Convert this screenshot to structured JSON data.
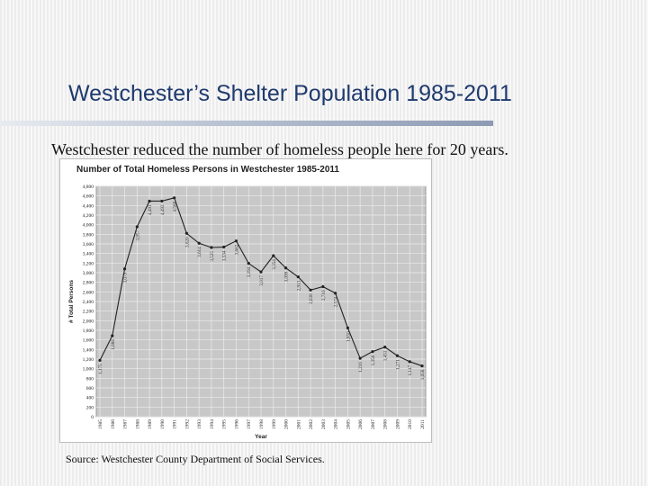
{
  "slide": {
    "title": "Westchester’s Shelter Population 1985-2011",
    "subtitle": "Westchester reduced the number of homeless people here for 20 years.",
    "source": "Source: Westchester County Department of Social Services."
  },
  "colors": {
    "title": "#1f3a6e",
    "plot_bg": "#c8c8c8",
    "line": "#222222"
  },
  "chart_data": {
    "type": "line",
    "title": "Number of Total Homeless Persons in Westchester 1985-2011",
    "xlabel": "Year",
    "ylabel": "# Total Persons",
    "ylim": [
      0,
      4800
    ],
    "ytick_step": 200,
    "grid": true,
    "categories": [
      "1985",
      "1986",
      "1987",
      "1988",
      "1989",
      "1990",
      "1991",
      "1992",
      "1993",
      "1994",
      "1995",
      "1996",
      "1997",
      "1998",
      "1999",
      "2000",
      "2001",
      "2002",
      "2003",
      "2004",
      "2005",
      "2006",
      "2007",
      "2008",
      "2009",
      "2010",
      "2011"
    ],
    "values": [
      1175,
      1686,
      3079,
      3957,
      4491,
      4492,
      4560,
      3820,
      3614,
      3525,
      3534,
      3662,
      3194,
      3017,
      3354,
      3099,
      2913,
      2638,
      2710,
      2574,
      1850,
      1216,
      1356,
      1451,
      1271,
      1147,
      1058
    ],
    "data_labels": [
      "1,175",
      "1,686",
      "3,079",
      "3,957",
      "4,491",
      "4,492",
      "4,560",
      "3,820",
      "3,614",
      "3,525",
      "3,534",
      "3,662",
      "3,194",
      "3,017",
      "3,354",
      "3,099",
      "2,913",
      "2,638",
      "2,710",
      "2,574",
      "1,850",
      "1,216",
      "1,356",
      "1,451",
      "1,271",
      "1,147",
      "1,058"
    ]
  }
}
